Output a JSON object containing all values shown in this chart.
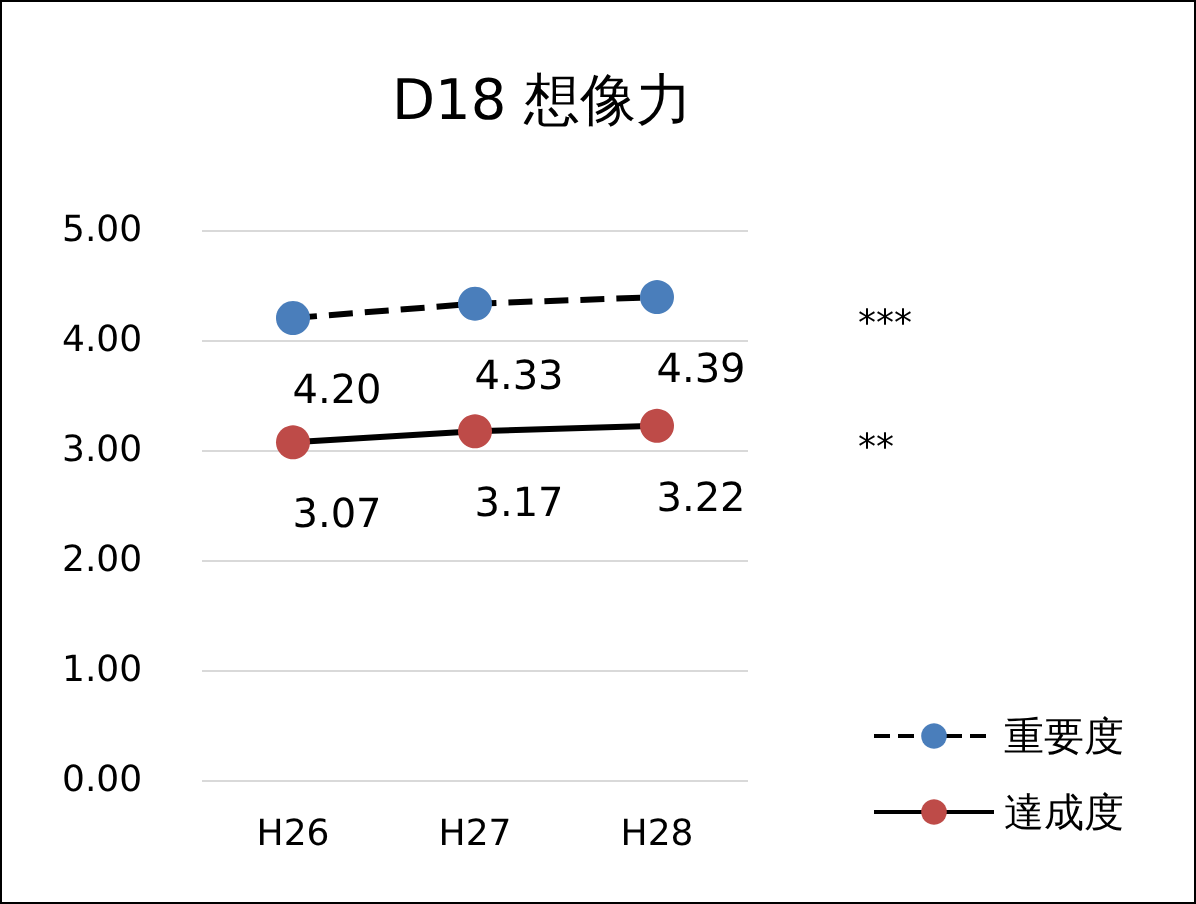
{
  "chart_data": {
    "type": "line",
    "title": "D18 想像力",
    "categories": [
      "H26",
      "H27",
      "H28"
    ],
    "series": [
      {
        "name": "重要度",
        "color": "#4a7ebb",
        "values": [
          4.2,
          4.33,
          4.39
        ],
        "value_labels": [
          "4.20",
          "4.33",
          "4.39"
        ],
        "line_style": "dashed"
      },
      {
        "name": "達成度",
        "color": "#be4b48",
        "values": [
          3.07,
          3.17,
          3.22
        ],
        "value_labels": [
          "3.07",
          "3.17",
          "3.22"
        ],
        "line_style": "solid"
      }
    ],
    "ylim": [
      0,
      5
    ],
    "yticks": [
      {
        "value": 0,
        "label": "0.00"
      },
      {
        "value": 1,
        "label": "1.00"
      },
      {
        "value": 2,
        "label": "2.00"
      },
      {
        "value": 3,
        "label": "3.00"
      },
      {
        "value": 4,
        "label": "4.00"
      },
      {
        "value": 5,
        "label": "5.00"
      }
    ],
    "grid": "y",
    "legend": "bottom right",
    "marker": "circle",
    "annotations": [
      "***",
      "**"
    ]
  }
}
